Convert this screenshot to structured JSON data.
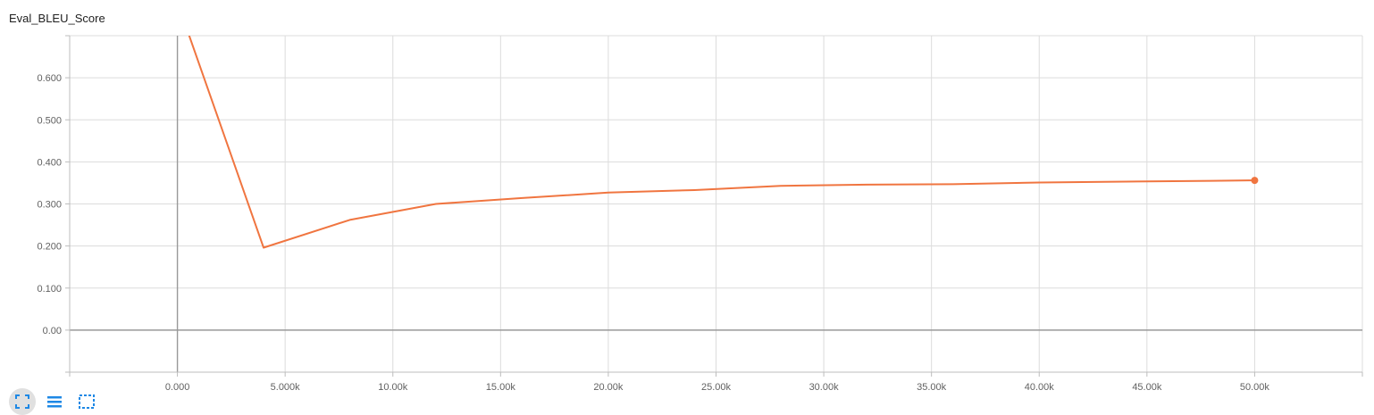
{
  "chart_data": {
    "type": "line",
    "title": "Eval_BLEU_Score",
    "xlabel": "",
    "ylabel": "",
    "x_ticks": [
      "0.000",
      "5.000k",
      "10.00k",
      "15.00k",
      "20.00k",
      "25.00k",
      "30.00k",
      "35.00k",
      "40.00k",
      "45.00k",
      "50.00k"
    ],
    "x_tick_values": [
      0,
      5000,
      10000,
      15000,
      20000,
      25000,
      30000,
      35000,
      40000,
      45000,
      50000
    ],
    "y_ticks": [
      "0.00",
      "0.100",
      "0.200",
      "0.300",
      "0.400",
      "0.500",
      "0.600"
    ],
    "y_tick_values": [
      0,
      0.1,
      0.2,
      0.3,
      0.4,
      0.5,
      0.6
    ],
    "xlim": [
      -5000,
      55000
    ],
    "ylim": [
      -0.1,
      0.7
    ],
    "grid": true,
    "series": [
      {
        "color": "#f07540",
        "x": [
          0,
          4000,
          8000,
          12000,
          16000,
          20000,
          24000,
          28000,
          32000,
          36000,
          40000,
          44000,
          48000,
          50000
        ],
        "values": [
          0.78,
          0.196,
          0.262,
          0.3,
          0.314,
          0.327,
          0.333,
          0.343,
          0.346,
          0.347,
          0.351,
          0.353,
          0.355,
          0.356
        ]
      }
    ]
  },
  "toolbar": {
    "icons": [
      "fit-domain-icon",
      "data-table-icon",
      "zoom-icon"
    ]
  }
}
